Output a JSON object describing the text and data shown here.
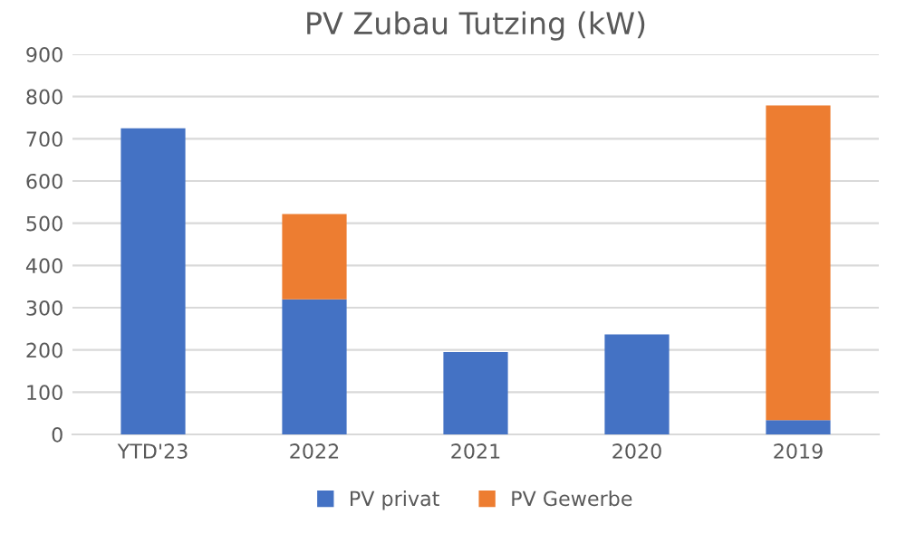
{
  "chart_data": {
    "type": "bar",
    "title": "PV Zubau Tutzing (kW)",
    "stacked": true,
    "categories": [
      "YTD'23",
      "2022",
      "2021",
      "2020",
      "2019"
    ],
    "series": [
      {
        "name": "PV privat",
        "color": "#4472c4",
        "values": [
          725,
          320,
          195,
          237,
          34
        ]
      },
      {
        "name": "PV Gewerbe",
        "color": "#ed7d31",
        "values": [
          0,
          202,
          0,
          0,
          745
        ]
      }
    ],
    "ylim": [
      0,
      900
    ],
    "yticks": [
      0,
      100,
      200,
      300,
      400,
      500,
      600,
      700,
      800,
      900
    ],
    "grid": "y",
    "legend": "bottom"
  }
}
